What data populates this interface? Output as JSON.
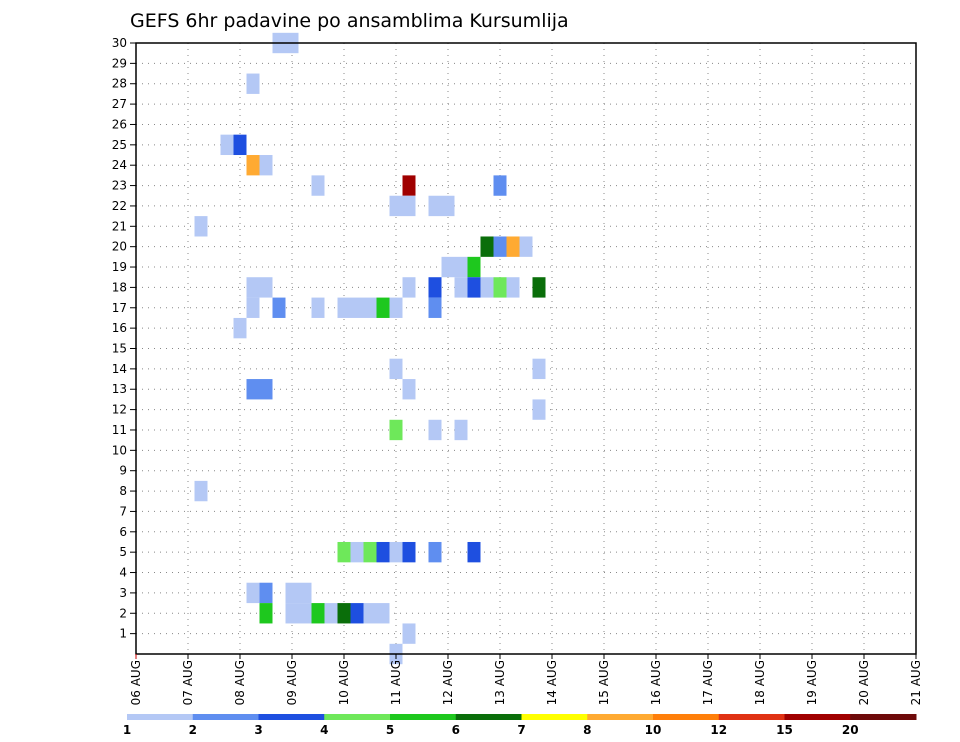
{
  "chart_data": {
    "type": "heatmap",
    "title": "GEFS 6hr padavine po ansamblima Kursumlija",
    "xlabel": "",
    "ylabel": "",
    "x_tick_labels": [
      "06 AUG",
      "07 AUG",
      "08 AUG",
      "09 AUG",
      "10 AUG",
      "11 AUG",
      "12 AUG",
      "13 AUG",
      "14 AUG",
      "15 AUG",
      "16 AUG",
      "17 AUG",
      "18 AUG",
      "19 AUG",
      "20 AUG",
      "21 AUG"
    ],
    "x_unit": "6-hour step",
    "y_tick_labels": [
      "1",
      "2",
      "3",
      "4",
      "5",
      "6",
      "7",
      "8",
      "9",
      "10",
      "11",
      "12",
      "13",
      "14",
      "15",
      "16",
      "17",
      "18",
      "19",
      "20",
      "21",
      "22",
      "23",
      "24",
      "25",
      "26",
      "27",
      "28",
      "29",
      "30"
    ],
    "y_range": [
      0,
      30
    ],
    "grid": true,
    "colorbar": {
      "labels": [
        "1",
        "2",
        "3",
        "4",
        "5",
        "6",
        "7",
        "8",
        "10",
        "12",
        "15",
        "20"
      ],
      "colors": [
        "#b4c8f5",
        "#5f8ef0",
        "#1e4fe0",
        "#6ee85a",
        "#1ec81e",
        "#0a6e0a",
        "#ffff00",
        "#ffaa32",
        "#ff7f0a",
        "#e03214",
        "#a00000",
        "#6e0a0a"
      ]
    },
    "cells": [
      {
        "member": 30,
        "step": 11,
        "color": "#b4c8f5"
      },
      {
        "member": 30,
        "step": 12,
        "color": "#b4c8f5"
      },
      {
        "member": 28,
        "step": 9,
        "color": "#b4c8f5"
      },
      {
        "member": 25,
        "step": 7,
        "color": "#b4c8f5"
      },
      {
        "member": 25,
        "step": 8,
        "color": "#1e4fe0"
      },
      {
        "member": 24,
        "step": 9,
        "color": "#ffaa32"
      },
      {
        "member": 24,
        "step": 10,
        "color": "#b4c8f5"
      },
      {
        "member": 23,
        "step": 14,
        "color": "#b4c8f5"
      },
      {
        "member": 23,
        "step": 21,
        "color": "#a00000"
      },
      {
        "member": 23,
        "step": 28,
        "color": "#5f8ef0"
      },
      {
        "member": 22,
        "step": 20,
        "color": "#b4c8f5"
      },
      {
        "member": 22,
        "step": 21,
        "color": "#b4c8f5"
      },
      {
        "member": 22,
        "step": 23,
        "color": "#b4c8f5"
      },
      {
        "member": 22,
        "step": 24,
        "color": "#b4c8f5"
      },
      {
        "member": 21,
        "step": 5,
        "color": "#b4c8f5"
      },
      {
        "member": 20,
        "step": 27,
        "color": "#0a6e0a"
      },
      {
        "member": 20,
        "step": 28,
        "color": "#5f8ef0"
      },
      {
        "member": 20,
        "step": 29,
        "color": "#ffaa32"
      },
      {
        "member": 20,
        "step": 30,
        "color": "#b4c8f5"
      },
      {
        "member": 19,
        "step": 24,
        "color": "#b4c8f5"
      },
      {
        "member": 19,
        "step": 25,
        "color": "#b4c8f5"
      },
      {
        "member": 19,
        "step": 26,
        "color": "#1ec81e"
      },
      {
        "member": 18,
        "step": 9,
        "color": "#b4c8f5"
      },
      {
        "member": 18,
        "step": 10,
        "color": "#b4c8f5"
      },
      {
        "member": 18,
        "step": 21,
        "color": "#b4c8f5"
      },
      {
        "member": 18,
        "step": 23,
        "color": "#1e4fe0"
      },
      {
        "member": 18,
        "step": 25,
        "color": "#b4c8f5"
      },
      {
        "member": 18,
        "step": 26,
        "color": "#1e4fe0"
      },
      {
        "member": 18,
        "step": 27,
        "color": "#b4c8f5"
      },
      {
        "member": 18,
        "step": 28,
        "color": "#6ee85a"
      },
      {
        "member": 18,
        "step": 29,
        "color": "#b4c8f5"
      },
      {
        "member": 18,
        "step": 31,
        "color": "#0a6e0a"
      },
      {
        "member": 17,
        "step": 9,
        "color": "#b4c8f5"
      },
      {
        "member": 17,
        "step": 11,
        "color": "#5f8ef0"
      },
      {
        "member": 17,
        "step": 14,
        "color": "#b4c8f5"
      },
      {
        "member": 17,
        "step": 16,
        "color": "#b4c8f5"
      },
      {
        "member": 17,
        "step": 17,
        "color": "#b4c8f5"
      },
      {
        "member": 17,
        "step": 18,
        "color": "#b4c8f5"
      },
      {
        "member": 17,
        "step": 19,
        "color": "#1ec81e"
      },
      {
        "member": 17,
        "step": 20,
        "color": "#b4c8f5"
      },
      {
        "member": 17,
        "step": 23,
        "color": "#5f8ef0"
      },
      {
        "member": 16,
        "step": 8,
        "color": "#b4c8f5"
      },
      {
        "member": 14,
        "step": 20,
        "color": "#b4c8f5"
      },
      {
        "member": 14,
        "step": 31,
        "color": "#b4c8f5"
      },
      {
        "member": 13,
        "step": 9,
        "color": "#5f8ef0"
      },
      {
        "member": 13,
        "step": 10,
        "color": "#5f8ef0"
      },
      {
        "member": 13,
        "step": 21,
        "color": "#b4c8f5"
      },
      {
        "member": 12,
        "step": 31,
        "color": "#b4c8f5"
      },
      {
        "member": 11,
        "step": 20,
        "color": "#6ee85a"
      },
      {
        "member": 11,
        "step": 23,
        "color": "#b4c8f5"
      },
      {
        "member": 11,
        "step": 25,
        "color": "#b4c8f5"
      },
      {
        "member": 8,
        "step": 5,
        "color": "#b4c8f5"
      },
      {
        "member": 5,
        "step": 16,
        "color": "#6ee85a"
      },
      {
        "member": 5,
        "step": 17,
        "color": "#b4c8f5"
      },
      {
        "member": 5,
        "step": 18,
        "color": "#6ee85a"
      },
      {
        "member": 5,
        "step": 19,
        "color": "#1e4fe0"
      },
      {
        "member": 5,
        "step": 20,
        "color": "#b4c8f5"
      },
      {
        "member": 5,
        "step": 21,
        "color": "#1e4fe0"
      },
      {
        "member": 5,
        "step": 23,
        "color": "#5f8ef0"
      },
      {
        "member": 5,
        "step": 26,
        "color": "#1e4fe0"
      },
      {
        "member": 3,
        "step": 9,
        "color": "#b4c8f5"
      },
      {
        "member": 3,
        "step": 10,
        "color": "#5f8ef0"
      },
      {
        "member": 3,
        "step": 12,
        "color": "#b4c8f5"
      },
      {
        "member": 3,
        "step": 13,
        "color": "#b4c8f5"
      },
      {
        "member": 2,
        "step": 10,
        "color": "#1ec81e"
      },
      {
        "member": 2,
        "step": 12,
        "color": "#b4c8f5"
      },
      {
        "member": 2,
        "step": 13,
        "color": "#b4c8f5"
      },
      {
        "member": 2,
        "step": 14,
        "color": "#1ec81e"
      },
      {
        "member": 2,
        "step": 15,
        "color": "#b4c8f5"
      },
      {
        "member": 2,
        "step": 16,
        "color": "#0a6e0a"
      },
      {
        "member": 2,
        "step": 17,
        "color": "#1e4fe0"
      },
      {
        "member": 2,
        "step": 18,
        "color": "#b4c8f5"
      },
      {
        "member": 2,
        "step": 19,
        "color": "#b4c8f5"
      },
      {
        "member": 1,
        "step": 21,
        "color": "#b4c8f5"
      },
      {
        "member": 0,
        "step": 20,
        "color": "#b4c8f5"
      }
    ]
  }
}
